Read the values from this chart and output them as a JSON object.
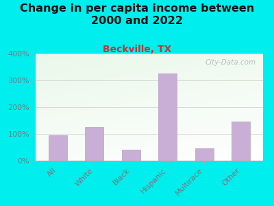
{
  "title": "Change in per capita income between\n2000 and 2022",
  "subtitle": "Beckville, TX",
  "categories": [
    "All",
    "White",
    "Black",
    "Hispanic",
    "Multirace",
    "Other"
  ],
  "values": [
    95,
    125,
    40,
    325,
    47,
    145
  ],
  "bar_color": "#c9aed6",
  "bar_edge_color": "#b89ec6",
  "title_fontsize": 11.5,
  "subtitle_fontsize": 10,
  "subtitle_color": "#cc3333",
  "title_color": "#111111",
  "background_color": "#00eeee",
  "tick_color": "#777777",
  "ylim": [
    0,
    400
  ],
  "yticks": [
    0,
    100,
    200,
    300,
    400
  ],
  "watermark": "City-Data.com",
  "watermark_color": "#aaaaaa",
  "grid_color": "#cccccc"
}
